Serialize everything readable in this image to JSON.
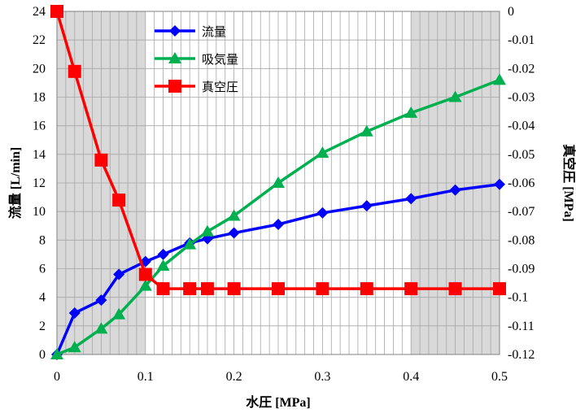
{
  "chart_data": {
    "type": "line",
    "xlabel": "水圧 [MPa]",
    "ylabel": "流量 [L/min]",
    "y2label": "真空圧 [MPa]",
    "xlim": [
      0,
      0.5
    ],
    "ylim": [
      0,
      24
    ],
    "y2lim": [
      -0.12,
      0
    ],
    "xticks": [
      "0",
      "0.1",
      "0.2",
      "0.3",
      "0.4",
      "0.5"
    ],
    "yticks": [
      "0",
      "2",
      "4",
      "6",
      "8",
      "10",
      "12",
      "14",
      "16",
      "18",
      "20",
      "22",
      "24"
    ],
    "y2ticks": [
      "0",
      "-0.01",
      "-0.02",
      "-0.03",
      "-0.04",
      "-0.05",
      "-0.06",
      "-0.07",
      "-0.08",
      "-0.09",
      "-0.1",
      "-0.11",
      "-0.12"
    ],
    "grid": true,
    "shaded_x_ranges": [
      [
        0,
        0.1
      ],
      [
        0.4,
        0.5
      ]
    ],
    "legend_position": "top-left",
    "series": [
      {
        "name": "流量",
        "axis": "left",
        "color": "#0000ff",
        "marker": "diamond",
        "x": [
          0,
          0.02,
          0.05,
          0.07,
          0.1,
          0.12,
          0.15,
          0.17,
          0.2,
          0.25,
          0.3,
          0.35,
          0.4,
          0.45,
          0.5
        ],
        "y": [
          0,
          2.9,
          3.8,
          5.6,
          6.5,
          7.0,
          7.8,
          8.1,
          8.5,
          9.1,
          9.9,
          10.4,
          10.9,
          11.5,
          11.9
        ]
      },
      {
        "name": "吸気量",
        "axis": "left",
        "color": "#00b050",
        "marker": "triangle",
        "x": [
          0,
          0.02,
          0.05,
          0.07,
          0.1,
          0.12,
          0.15,
          0.17,
          0.2,
          0.25,
          0.3,
          0.35,
          0.4,
          0.45,
          0.5
        ],
        "y": [
          0,
          0.5,
          1.8,
          2.8,
          4.8,
          6.2,
          7.7,
          8.6,
          9.7,
          12.0,
          14.1,
          15.6,
          16.9,
          18.0,
          19.2
        ]
      },
      {
        "name": "真空圧",
        "axis": "right",
        "color": "#ff0000",
        "marker": "square",
        "x": [
          0,
          0.02,
          0.05,
          0.07,
          0.1,
          0.12,
          0.15,
          0.17,
          0.2,
          0.25,
          0.3,
          0.35,
          0.4,
          0.45,
          0.5
        ],
        "y": [
          0,
          -0.021,
          -0.052,
          -0.066,
          -0.092,
          -0.097,
          -0.097,
          -0.097,
          -0.097,
          -0.097,
          -0.097,
          -0.097,
          -0.097,
          -0.097,
          -0.097
        ]
      }
    ]
  }
}
